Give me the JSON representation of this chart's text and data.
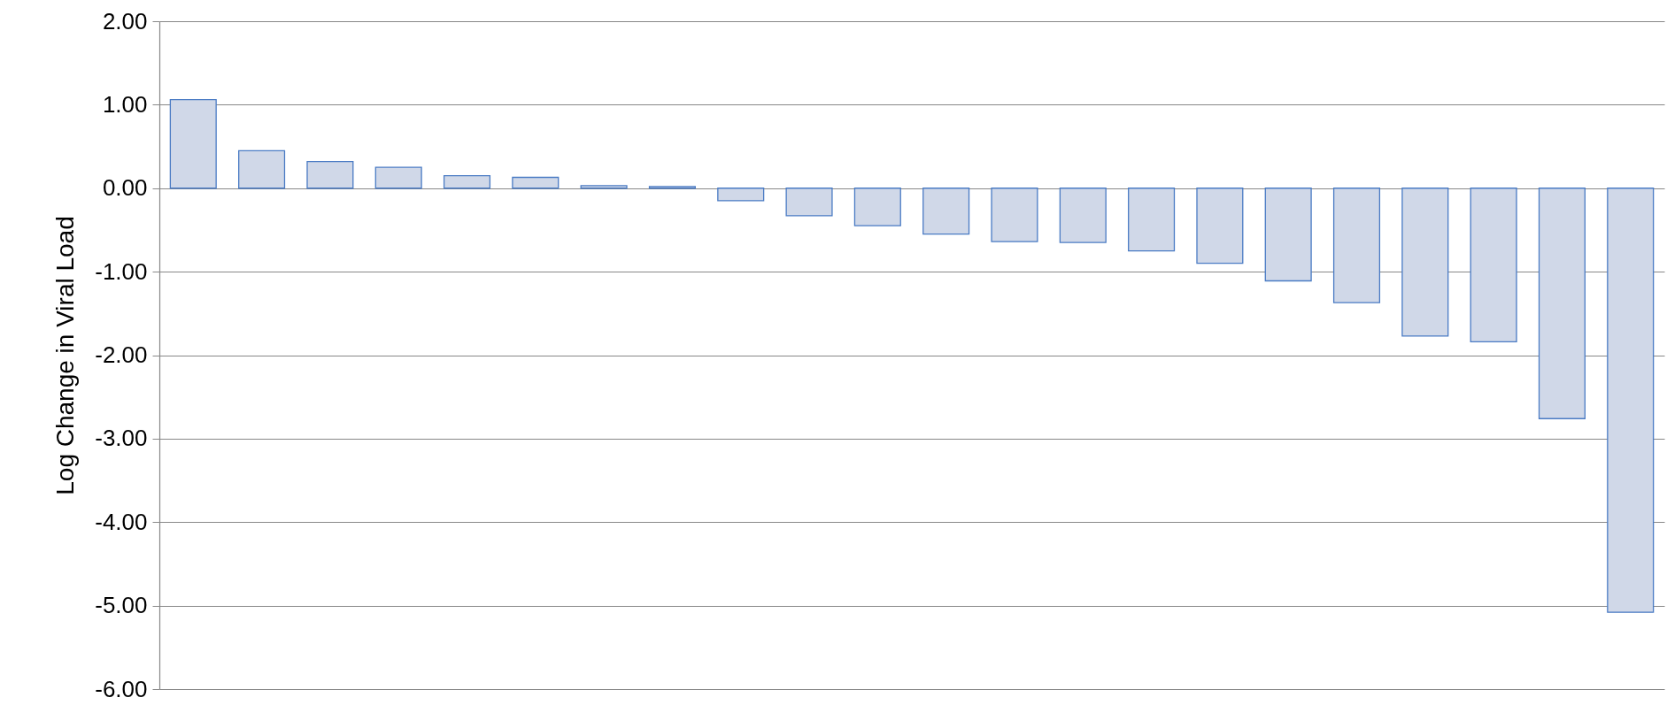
{
  "chart_data": {
    "type": "bar",
    "ylabel": "Log Change in Viral Load",
    "categories": [
      null,
      null,
      null,
      null,
      null,
      null,
      null,
      null,
      null,
      null,
      null,
      null,
      null,
      null,
      null,
      null,
      null,
      null,
      null,
      null,
      null,
      null
    ],
    "values": [
      1.06,
      0.45,
      0.32,
      0.25,
      0.15,
      0.13,
      0.03,
      0.02,
      -0.15,
      -0.33,
      -0.45,
      -0.55,
      -0.64,
      -0.65,
      -0.75,
      -0.9,
      -1.11,
      -1.37,
      -1.77,
      -1.84,
      -2.76,
      -5.08
    ],
    "color": "#d0d8e8",
    "ylim": [
      -6,
      2
    ],
    "yticks": [
      {
        "value": -6,
        "label": "-6.00"
      },
      {
        "value": -5,
        "label": "-5.00"
      },
      {
        "value": -4,
        "label": "-4.00"
      },
      {
        "value": -3,
        "label": "-3.00"
      },
      {
        "value": -2,
        "label": "-2.00"
      },
      {
        "value": -1,
        "label": "-1.00"
      },
      {
        "value": 0,
        "label": "0.00"
      },
      {
        "value": 1,
        "label": "1.00"
      },
      {
        "value": 2,
        "label": "2.00"
      }
    ],
    "grid": "y",
    "tick_labels": "y"
  }
}
